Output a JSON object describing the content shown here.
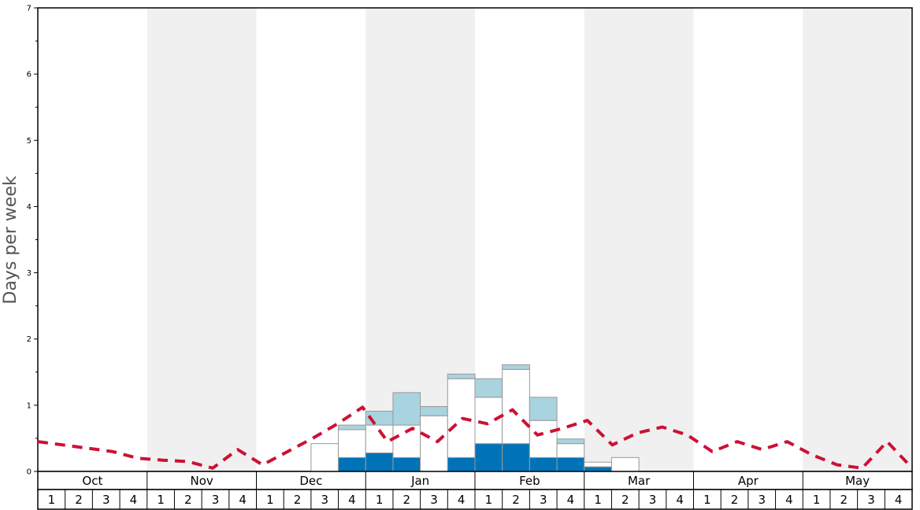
{
  "chart_data": {
    "type": "bar",
    "ylabel": "Days per week",
    "ylim": [
      0,
      7
    ],
    "y_ticks": [
      "0",
      "1",
      "2",
      "3",
      "4",
      "5",
      "6",
      "7"
    ],
    "months": [
      "Oct",
      "Nov",
      "Dec",
      "Jan",
      "Feb",
      "Mar",
      "Apr",
      "May"
    ],
    "week_labels": [
      "1",
      "2",
      "3",
      "4"
    ],
    "shaded_months": [
      "Nov",
      "Jan",
      "Mar",
      "May"
    ],
    "colors": {
      "dark_blue": "#0073b8",
      "white_segment": "#ffffff",
      "light_blue": "#a9d3df",
      "dashed_line": "#cc1133",
      "shade": "#f0f0f0",
      "bar_border": "#999999"
    },
    "stacked_bars": [
      {
        "month": "Dec",
        "week": "3",
        "dark": 0.0,
        "white": 0.42,
        "light": 0.0
      },
      {
        "month": "Dec",
        "week": "4",
        "dark": 0.21,
        "white": 0.42,
        "light": 0.07
      },
      {
        "month": "Jan",
        "week": "1",
        "dark": 0.28,
        "white": 0.42,
        "light": 0.21
      },
      {
        "month": "Jan",
        "week": "2",
        "dark": 0.21,
        "white": 0.49,
        "light": 0.49
      },
      {
        "month": "Jan",
        "week": "3",
        "dark": 0.0,
        "white": 0.84,
        "light": 0.14
      },
      {
        "month": "Jan",
        "week": "4",
        "dark": 0.21,
        "white": 1.19,
        "light": 0.07
      },
      {
        "month": "Feb",
        "week": "1",
        "dark": 0.42,
        "white": 0.7,
        "light": 0.28
      },
      {
        "month": "Feb",
        "week": "2",
        "dark": 0.42,
        "white": 1.12,
        "light": 0.07
      },
      {
        "month": "Feb",
        "week": "3",
        "dark": 0.21,
        "white": 0.56,
        "light": 0.35
      },
      {
        "month": "Feb",
        "week": "4",
        "dark": 0.21,
        "white": 0.21,
        "light": 0.07
      },
      {
        "month": "Mar",
        "week": "1",
        "dark": 0.07,
        "white": 0.07,
        "light": 0.0
      },
      {
        "month": "Mar",
        "week": "2",
        "dark": 0.0,
        "white": 0.21,
        "light": 0.0
      }
    ],
    "dashed_series": {
      "values": [
        0.45,
        0.4,
        0.35,
        0.3,
        0.2,
        0.17,
        0.15,
        0.05,
        0.33,
        0.1,
        0.3,
        0.5,
        0.72,
        0.97,
        0.45,
        0.65,
        0.45,
        0.8,
        0.72,
        0.93,
        0.55,
        0.65,
        0.77,
        0.4,
        0.58,
        0.67,
        0.55,
        0.3,
        0.45,
        0.33,
        0.45,
        0.25,
        0.1,
        0.05,
        0.45,
        0.05
      ]
    }
  }
}
